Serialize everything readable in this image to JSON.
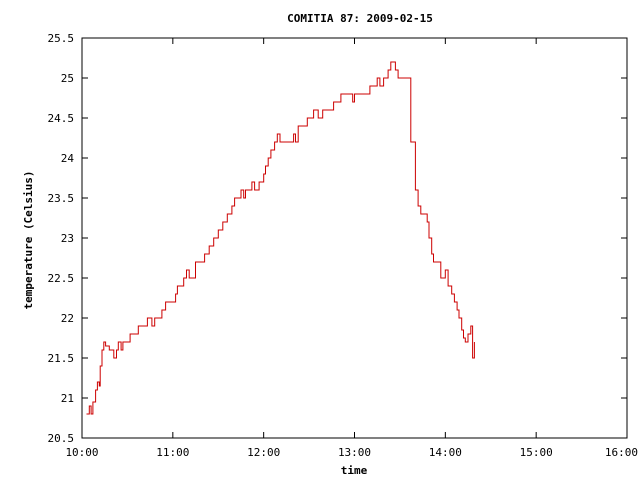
{
  "chart_data": {
    "type": "line",
    "title": "COMITIA 87: 2009-02-15",
    "xlabel": "time",
    "ylabel": "temperature (Celsius)",
    "x_unit": "hours",
    "xlim": [
      10.0,
      16.0
    ],
    "ylim": [
      20.5,
      25.5
    ],
    "grid": false,
    "legend": "none",
    "x_ticks": [
      {
        "value": 10,
        "label": "10:00"
      },
      {
        "value": 11,
        "label": "11:00"
      },
      {
        "value": 12,
        "label": "12:00"
      },
      {
        "value": 13,
        "label": "13:00"
      },
      {
        "value": 14,
        "label": "14:00"
      },
      {
        "value": 15,
        "label": "15:00"
      },
      {
        "value": 16,
        "label": "16:00"
      }
    ],
    "y_ticks": [
      {
        "value": 20.5,
        "label": "20.5"
      },
      {
        "value": 21,
        "label": "21"
      },
      {
        "value": 21.5,
        "label": "21.5"
      },
      {
        "value": 22,
        "label": "22"
      },
      {
        "value": 22.5,
        "label": "22.5"
      },
      {
        "value": 23,
        "label": "23"
      },
      {
        "value": 23.5,
        "label": "23.5"
      },
      {
        "value": 24,
        "label": "24"
      },
      {
        "value": 24.5,
        "label": "24.5"
      },
      {
        "value": 25,
        "label": "25"
      },
      {
        "value": 25.5,
        "label": "25.5"
      }
    ],
    "series": [
      {
        "color": "#cc0000",
        "points": [
          [
            10.05,
            20.8
          ],
          [
            10.08,
            20.9
          ],
          [
            10.1,
            20.8
          ],
          [
            10.12,
            20.95
          ],
          [
            10.15,
            21.1
          ],
          [
            10.17,
            21.2
          ],
          [
            10.19,
            21.15
          ],
          [
            10.2,
            21.4
          ],
          [
            10.22,
            21.6
          ],
          [
            10.24,
            21.7
          ],
          [
            10.26,
            21.65
          ],
          [
            10.3,
            21.6
          ],
          [
            10.33,
            21.6
          ],
          [
            10.35,
            21.5
          ],
          [
            10.38,
            21.6
          ],
          [
            10.4,
            21.7
          ],
          [
            10.43,
            21.6
          ],
          [
            10.45,
            21.7
          ],
          [
            10.5,
            21.7
          ],
          [
            10.53,
            21.8
          ],
          [
            10.6,
            21.8
          ],
          [
            10.62,
            21.9
          ],
          [
            10.7,
            21.9
          ],
          [
            10.72,
            22.0
          ],
          [
            10.77,
            21.9
          ],
          [
            10.8,
            22.0
          ],
          [
            10.85,
            22.0
          ],
          [
            10.88,
            22.1
          ],
          [
            10.92,
            22.2
          ],
          [
            11.0,
            22.2
          ],
          [
            11.03,
            22.3
          ],
          [
            11.05,
            22.4
          ],
          [
            11.1,
            22.4
          ],
          [
            11.12,
            22.5
          ],
          [
            11.15,
            22.6
          ],
          [
            11.18,
            22.5
          ],
          [
            11.22,
            22.5
          ],
          [
            11.25,
            22.7
          ],
          [
            11.3,
            22.7
          ],
          [
            11.35,
            22.8
          ],
          [
            11.4,
            22.9
          ],
          [
            11.45,
            23.0
          ],
          [
            11.5,
            23.1
          ],
          [
            11.55,
            23.2
          ],
          [
            11.6,
            23.3
          ],
          [
            11.65,
            23.4
          ],
          [
            11.68,
            23.5
          ],
          [
            11.73,
            23.5
          ],
          [
            11.75,
            23.6
          ],
          [
            11.78,
            23.5
          ],
          [
            11.8,
            23.6
          ],
          [
            11.85,
            23.6
          ],
          [
            11.87,
            23.7
          ],
          [
            11.9,
            23.6
          ],
          [
            11.95,
            23.7
          ],
          [
            12.0,
            23.8
          ],
          [
            12.02,
            23.9
          ],
          [
            12.05,
            24.0
          ],
          [
            12.08,
            24.1
          ],
          [
            12.12,
            24.2
          ],
          [
            12.15,
            24.3
          ],
          [
            12.18,
            24.2
          ],
          [
            12.3,
            24.2
          ],
          [
            12.33,
            24.3
          ],
          [
            12.35,
            24.2
          ],
          [
            12.38,
            24.4
          ],
          [
            12.45,
            24.4
          ],
          [
            12.48,
            24.5
          ],
          [
            12.52,
            24.5
          ],
          [
            12.55,
            24.6
          ],
          [
            12.6,
            24.5
          ],
          [
            12.65,
            24.6
          ],
          [
            12.75,
            24.6
          ],
          [
            12.77,
            24.7
          ],
          [
            12.85,
            24.8
          ],
          [
            12.95,
            24.8
          ],
          [
            12.98,
            24.7
          ],
          [
            13.0,
            24.8
          ],
          [
            13.15,
            24.8
          ],
          [
            13.17,
            24.9
          ],
          [
            13.22,
            24.9
          ],
          [
            13.25,
            25.0
          ],
          [
            13.28,
            24.9
          ],
          [
            13.32,
            25.0
          ],
          [
            13.37,
            25.1
          ],
          [
            13.4,
            25.2
          ],
          [
            13.45,
            25.1
          ],
          [
            13.48,
            25.0
          ],
          [
            13.57,
            25.0
          ],
          [
            13.62,
            24.2
          ],
          [
            13.67,
            23.6
          ],
          [
            13.7,
            23.4
          ],
          [
            13.73,
            23.3
          ],
          [
            13.8,
            23.2
          ],
          [
            13.82,
            23.0
          ],
          [
            13.85,
            22.8
          ],
          [
            13.87,
            22.7
          ],
          [
            13.9,
            22.7
          ],
          [
            13.95,
            22.5
          ],
          [
            14.0,
            22.6
          ],
          [
            14.03,
            22.4
          ],
          [
            14.07,
            22.3
          ],
          [
            14.1,
            22.2
          ],
          [
            14.13,
            22.1
          ],
          [
            14.15,
            22.0
          ],
          [
            14.18,
            21.85
          ],
          [
            14.2,
            21.75
          ],
          [
            14.22,
            21.7
          ],
          [
            14.25,
            21.8
          ],
          [
            14.28,
            21.9
          ],
          [
            14.3,
            21.5
          ],
          [
            14.32,
            21.7
          ]
        ]
      }
    ]
  }
}
